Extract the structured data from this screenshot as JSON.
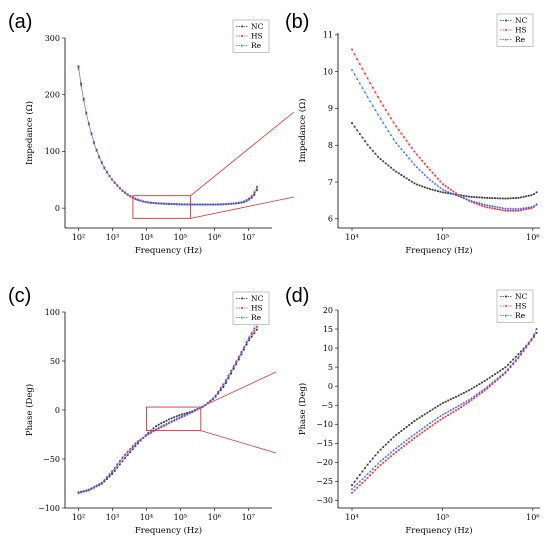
{
  "panels": [
    {
      "id": "a",
      "letter": "(a)"
    },
    {
      "id": "b",
      "letter": "(b)"
    },
    {
      "id": "c",
      "letter": "(c)"
    },
    {
      "id": "d",
      "letter": "(d)"
    }
  ],
  "colors": {
    "NC": "#3a3a3a",
    "HS": "#ff2a2a",
    "Re": "#2a6cff",
    "zoom": "#e03030"
  },
  "chart_data": [
    {
      "id": "a",
      "type": "line",
      "title": "",
      "xlabel": "Frequency (Hz)",
      "ylabel": "Impedance (Ω)",
      "xscale": "log",
      "xlim": [
        40,
        50000000
      ],
      "ylim": [
        -35,
        300
      ],
      "xticks": [
        100,
        1000,
        10000,
        100000,
        1000000,
        10000000
      ],
      "xtick_labels": [
        "10²",
        "10³",
        "10⁴",
        "10⁵",
        "10⁶",
        "10⁷"
      ],
      "yticks": [
        0,
        100,
        200,
        300
      ],
      "ytick_labels": [
        "0",
        "100",
        "200",
        "300"
      ],
      "legend": {
        "position": "top-right",
        "entries": [
          "NC",
          "HS",
          "Re"
        ]
      },
      "zoom_box": {
        "x": [
          4000,
          200000
        ],
        "y": [
          -18,
          22
        ]
      },
      "series": [
        {
          "name": "NC",
          "x": [
            100,
            130,
            170,
            220,
            300,
            400,
            550,
            750,
            1000,
            1500,
            2000,
            3000,
            5000,
            8000,
            12000,
            20000,
            40000,
            70000,
            100000,
            200000,
            400000,
            700000,
            1000000,
            2000000,
            4000000,
            7000000,
            10000000,
            14000000,
            18000000
          ],
          "y": [
            250,
            205,
            168,
            140,
            112,
            92,
            74,
            60,
            50,
            38,
            31,
            23,
            16,
            12,
            10,
            8.5,
            7.5,
            7,
            6.8,
            6.6,
            6.5,
            6.5,
            6.6,
            7,
            8,
            10,
            14,
            20,
            32
          ]
        },
        {
          "name": "HS",
          "x": [
            100,
            130,
            170,
            220,
            300,
            400,
            550,
            750,
            1000,
            1500,
            2000,
            3000,
            5000,
            8000,
            12000,
            20000,
            40000,
            70000,
            100000,
            200000,
            400000,
            700000,
            1000000,
            2000000,
            4000000,
            7000000,
            10000000,
            14000000,
            18000000
          ],
          "y": [
            248,
            203,
            167,
            139,
            111,
            91,
            73,
            60,
            50,
            38,
            31,
            23,
            16,
            12,
            10,
            9,
            8,
            7.5,
            7,
            6.5,
            6.2,
            6.2,
            6.3,
            7,
            8.5,
            11,
            16,
            24,
            38
          ]
        },
        {
          "name": "Re",
          "x": [
            100,
            130,
            170,
            220,
            300,
            400,
            550,
            750,
            1000,
            1500,
            2000,
            3000,
            5000,
            8000,
            12000,
            20000,
            40000,
            70000,
            100000,
            200000,
            400000,
            700000,
            1000000,
            2000000,
            4000000,
            7000000,
            10000000,
            14000000,
            18000000
          ],
          "y": [
            246,
            202,
            166,
            138,
            110,
            90,
            72,
            59,
            49,
            37,
            30,
            22,
            15,
            11.5,
            9.5,
            8.5,
            7.5,
            7,
            6.8,
            6.5,
            6.3,
            6.3,
            6.4,
            7,
            8.5,
            11,
            15,
            22,
            36
          ]
        }
      ]
    },
    {
      "id": "b",
      "type": "line",
      "title": "",
      "xlabel": "Frequency (Hz)",
      "ylabel": "Impedance (Ω)",
      "xscale": "log",
      "xlim": [
        7000,
        1200000
      ],
      "ylim": [
        5.75,
        11.05
      ],
      "xticks": [
        10000,
        100000,
        1000000
      ],
      "xtick_labels": [
        "10⁴",
        "10⁵",
        "10⁶"
      ],
      "yticks": [
        6,
        7,
        8,
        9,
        10,
        11
      ],
      "ytick_labels": [
        "6",
        "7",
        "8",
        "9",
        "10",
        "11"
      ],
      "legend": {
        "position": "top-right",
        "entries": [
          "NC",
          "HS",
          "Re"
        ]
      },
      "series": [
        {
          "name": "NC",
          "x": [
            10000,
            15000,
            20000,
            30000,
            50000,
            70000,
            100000,
            150000,
            200000,
            300000,
            500000,
            700000,
            1000000,
            1100000
          ],
          "y": [
            8.6,
            8.0,
            7.65,
            7.3,
            6.95,
            6.82,
            6.72,
            6.65,
            6.6,
            6.57,
            6.55,
            6.57,
            6.65,
            6.72
          ]
        },
        {
          "name": "HS",
          "x": [
            10000,
            15000,
            20000,
            30000,
            50000,
            70000,
            100000,
            150000,
            200000,
            300000,
            500000,
            700000,
            1000000,
            1100000
          ],
          "y": [
            10.6,
            9.8,
            9.25,
            8.55,
            7.8,
            7.38,
            6.95,
            6.65,
            6.48,
            6.32,
            6.22,
            6.22,
            6.3,
            6.38
          ]
        },
        {
          "name": "Re",
          "x": [
            10000,
            15000,
            20000,
            30000,
            50000,
            70000,
            100000,
            150000,
            200000,
            300000,
            500000,
            700000,
            1000000,
            1100000
          ],
          "y": [
            10.05,
            9.3,
            8.78,
            8.1,
            7.45,
            7.1,
            6.8,
            6.62,
            6.5,
            6.38,
            6.28,
            6.27,
            6.33,
            6.4
          ]
        }
      ]
    },
    {
      "id": "c",
      "type": "line",
      "title": "",
      "xlabel": "Frequency (Hz)",
      "ylabel": "Phase (Deg)",
      "xscale": "log",
      "xlim": [
        40,
        50000000
      ],
      "ylim": [
        -100,
        100
      ],
      "xticks": [
        100,
        1000,
        10000,
        100000,
        1000000,
        10000000
      ],
      "xtick_labels": [
        "10²",
        "10³",
        "10⁴",
        "10⁵",
        "10⁶",
        "10⁷"
      ],
      "yticks": [
        -100,
        -50,
        0,
        50,
        100
      ],
      "ytick_labels": [
        "−100",
        "−50",
        "0",
        "50",
        "100"
      ],
      "legend": {
        "position": "top-right",
        "entries": [
          "NC",
          "HS",
          "Re"
        ]
      },
      "zoom_box": {
        "x": [
          10000,
          400000
        ],
        "y": [
          -21,
          3
        ]
      },
      "series": [
        {
          "name": "NC",
          "x": [
            100,
            200,
            500,
            1000,
            2000,
            5000,
            10000,
            20000,
            50000,
            100000,
            200000,
            500000,
            1000000,
            2000000,
            5000000,
            10000000,
            18000000
          ],
          "y": [
            -84,
            -82,
            -75,
            -65,
            -52,
            -36,
            -25,
            -16,
            -9,
            -5,
            -2,
            4,
            12,
            25,
            50,
            70,
            82
          ]
        },
        {
          "name": "HS",
          "x": [
            100,
            200,
            500,
            1000,
            2000,
            5000,
            10000,
            20000,
            50000,
            100000,
            200000,
            500000,
            1000000,
            2000000,
            5000000,
            10000000,
            18000000
          ],
          "y": [
            -85,
            -82,
            -74,
            -62,
            -48,
            -33,
            -26,
            -20,
            -13,
            -8,
            -3,
            4,
            13,
            28,
            53,
            72,
            85
          ]
        },
        {
          "name": "Re",
          "x": [
            100,
            200,
            500,
            1000,
            2000,
            5000,
            10000,
            20000,
            50000,
            100000,
            200000,
            500000,
            1000000,
            2000000,
            5000000,
            10000000,
            18000000
          ],
          "y": [
            -84,
            -81,
            -74,
            -63,
            -49,
            -34,
            -26,
            -19,
            -12,
            -7,
            -3,
            4,
            13,
            27,
            52,
            73,
            88
          ]
        }
      ]
    },
    {
      "id": "d",
      "type": "line",
      "title": "",
      "xlabel": "Frequency (Hz)",
      "ylabel": "Phase (Deg)",
      "xscale": "log",
      "xlim": [
        7000,
        1200000
      ],
      "ylim": [
        -32,
        20
      ],
      "xticks": [
        10000,
        100000,
        1000000
      ],
      "xtick_labels": [
        "10⁴",
        "10⁵",
        "10⁶"
      ],
      "yticks": [
        -30,
        -25,
        -20,
        -15,
        -10,
        -5,
        0,
        5,
        10,
        15,
        20
      ],
      "ytick_labels": [
        "−30",
        "−25",
        "−20",
        "−15",
        "−10",
        "−5",
        "0",
        "5",
        "10",
        "15",
        "20"
      ],
      "legend": {
        "position": "top-right",
        "entries": [
          "NC",
          "HS",
          "Re"
        ]
      },
      "series": [
        {
          "name": "NC",
          "x": [
            10000,
            15000,
            20000,
            30000,
            50000,
            70000,
            100000,
            150000,
            200000,
            300000,
            500000,
            700000,
            1000000,
            1100000
          ],
          "y": [
            -26,
            -20.5,
            -17,
            -13,
            -9,
            -6.8,
            -4.5,
            -2.5,
            -1,
            1.5,
            5,
            8.5,
            12.5,
            14
          ]
        },
        {
          "name": "HS",
          "x": [
            10000,
            15000,
            20000,
            30000,
            50000,
            70000,
            100000,
            150000,
            200000,
            300000,
            500000,
            700000,
            1000000,
            1100000
          ],
          "y": [
            -28,
            -24,
            -21,
            -17.5,
            -13.5,
            -11,
            -8.5,
            -6,
            -4,
            -1,
            3.5,
            7.5,
            12.5,
            15
          ]
        },
        {
          "name": "Re",
          "x": [
            10000,
            15000,
            20000,
            30000,
            50000,
            70000,
            100000,
            150000,
            200000,
            300000,
            500000,
            700000,
            1000000,
            1100000
          ],
          "y": [
            -27,
            -23,
            -20,
            -16.5,
            -12.5,
            -10,
            -7.5,
            -5.2,
            -3.5,
            -0.5,
            3.8,
            7.8,
            13,
            15
          ]
        }
      ]
    }
  ]
}
